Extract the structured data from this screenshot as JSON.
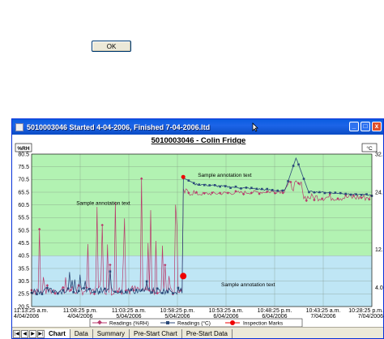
{
  "dialog": {
    "ok_label": "OK"
  },
  "window": {
    "title": "5010003046 Started 4-04-2006, Finished 7-04-2006.ltd",
    "minimize_glyph": "_",
    "maximize_glyph": "□",
    "close_glyph": "x"
  },
  "chart_data": {
    "type": "line",
    "title": "5010003046 - Colin Fridge",
    "left_axis": {
      "label": "%RH",
      "ticks": [
        "80.5",
        "75.5",
        "70.5",
        "65.5",
        "60.5",
        "55.5",
        "50.5",
        "45.5",
        "40.5",
        "35.5",
        "30.5",
        "25.5",
        "20.5"
      ],
      "range": [
        20.5,
        80.5
      ]
    },
    "right_axis": {
      "label": "°C",
      "ticks": [
        "32.0",
        "24.0",
        "12.0",
        "4.0"
      ],
      "range": [
        0,
        32
      ]
    },
    "x_ticks": [
      [
        "11:13:25 a.m.",
        "4/04/2006"
      ],
      [
        "11:08:25 p.m.",
        "4/04/2006"
      ],
      [
        "11:03:25 a.m.",
        "5/04/2006"
      ],
      [
        "10:58:25 p.m.",
        "5/04/2006"
      ],
      [
        "10:53:25 a.m.",
        "6/04/2006"
      ],
      [
        "10:48:25 p.m.",
        "6/04/2006"
      ],
      [
        "10:43:25 a.m.",
        "7/04/2006"
      ],
      [
        "10:28:25 p.m.",
        "7/04/2006"
      ]
    ],
    "bands": [
      {
        "from": 40.5,
        "to": 80.5,
        "color": "#b2f2b2"
      },
      {
        "from": 20.5,
        "to": 40.5,
        "color": "#bfe6f5"
      }
    ],
    "annotations": [
      {
        "text": "Sample annotation text",
        "x_index": 0.92,
        "y": 60.5
      },
      {
        "text": "Sample annotation text",
        "x_index": 3.42,
        "y": 71.5
      },
      {
        "text": "Sample annotation text",
        "x_index": 3.9,
        "y": 28.5
      }
    ],
    "inspection_marks": [
      {
        "x_index": 3.12,
        "y": 71.5
      },
      {
        "x_index": 3.12,
        "y": 32.5
      }
    ],
    "legend": {
      "position": "bottom",
      "items": [
        {
          "name": "Readings (%RH)",
          "color": "#b83a6c",
          "marker": "diamond"
        },
        {
          "name": "Readings (°C)",
          "color": "#2c4a7a",
          "marker": "square"
        },
        {
          "name": "Inspection Marks",
          "color": "#ee0000",
          "marker": "circle"
        }
      ]
    }
  },
  "tabs": [
    {
      "label": "Chart"
    },
    {
      "label": "Data"
    },
    {
      "label": "Summary"
    },
    {
      "label": "Pre-Start Chart"
    },
    {
      "label": "Pre-Start Data"
    }
  ],
  "nav_glyphs": {
    "first": "|◀",
    "prev": "◀",
    "next": "▶",
    "last": "▶|"
  }
}
